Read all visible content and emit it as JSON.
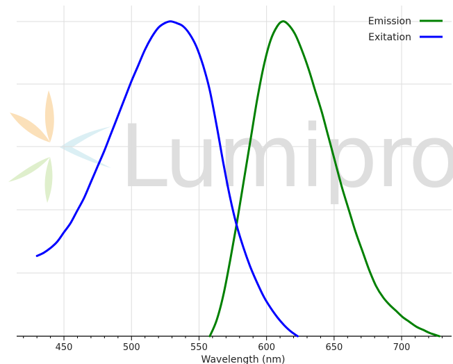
{
  "watermark": {
    "text": "Lumiprobe"
  },
  "chart_data": {
    "type": "line",
    "xlabel": "Wavelength (nm)",
    "ylabel": "",
    "xlim": [
      415,
      737
    ],
    "ylim": [
      0,
      1.05
    ],
    "x_ticks": [
      450,
      500,
      550,
      600,
      650,
      700
    ],
    "grid": true,
    "legend_position": "top-right",
    "series": [
      {
        "name": "Emission",
        "color": "#008000",
        "points": [
          [
            558,
            0.0
          ],
          [
            563,
            0.05
          ],
          [
            568,
            0.13
          ],
          [
            573,
            0.24
          ],
          [
            578,
            0.36
          ],
          [
            583,
            0.49
          ],
          [
            588,
            0.62
          ],
          [
            593,
            0.75
          ],
          [
            598,
            0.86
          ],
          [
            603,
            0.94
          ],
          [
            608,
            0.985
          ],
          [
            612,
            1.0
          ],
          [
            616,
            0.99
          ],
          [
            621,
            0.96
          ],
          [
            626,
            0.91
          ],
          [
            631,
            0.85
          ],
          [
            636,
            0.78
          ],
          [
            641,
            0.71
          ],
          [
            646,
            0.63
          ],
          [
            651,
            0.55
          ],
          [
            656,
            0.47
          ],
          [
            661,
            0.4
          ],
          [
            666,
            0.33
          ],
          [
            671,
            0.27
          ],
          [
            676,
            0.21
          ],
          [
            681,
            0.16
          ],
          [
            686,
            0.125
          ],
          [
            691,
            0.1
          ],
          [
            696,
            0.08
          ],
          [
            701,
            0.06
          ],
          [
            706,
            0.045
          ],
          [
            711,
            0.03
          ],
          [
            716,
            0.02
          ],
          [
            721,
            0.01
          ],
          [
            728,
            0.0
          ]
        ]
      },
      {
        "name": "Exitation",
        "color": "#0000ff",
        "points": [
          [
            430,
            0.255
          ],
          [
            435,
            0.265
          ],
          [
            440,
            0.28
          ],
          [
            445,
            0.3
          ],
          [
            450,
            0.33
          ],
          [
            455,
            0.36
          ],
          [
            460,
            0.4
          ],
          [
            465,
            0.44
          ],
          [
            470,
            0.49
          ],
          [
            475,
            0.54
          ],
          [
            480,
            0.59
          ],
          [
            485,
            0.645
          ],
          [
            490,
            0.7
          ],
          [
            495,
            0.755
          ],
          [
            500,
            0.81
          ],
          [
            505,
            0.86
          ],
          [
            510,
            0.91
          ],
          [
            515,
            0.95
          ],
          [
            520,
            0.98
          ],
          [
            525,
            0.995
          ],
          [
            529,
            1.0
          ],
          [
            533,
            0.995
          ],
          [
            538,
            0.985
          ],
          [
            543,
            0.96
          ],
          [
            548,
            0.92
          ],
          [
            553,
            0.86
          ],
          [
            558,
            0.78
          ],
          [
            563,
            0.67
          ],
          [
            568,
            0.55
          ],
          [
            573,
            0.44
          ],
          [
            578,
            0.35
          ],
          [
            583,
            0.28
          ],
          [
            588,
            0.22
          ],
          [
            593,
            0.17
          ],
          [
            598,
            0.125
          ],
          [
            603,
            0.09
          ],
          [
            608,
            0.06
          ],
          [
            613,
            0.035
          ],
          [
            618,
            0.015
          ],
          [
            623,
            0.0
          ]
        ]
      }
    ]
  }
}
